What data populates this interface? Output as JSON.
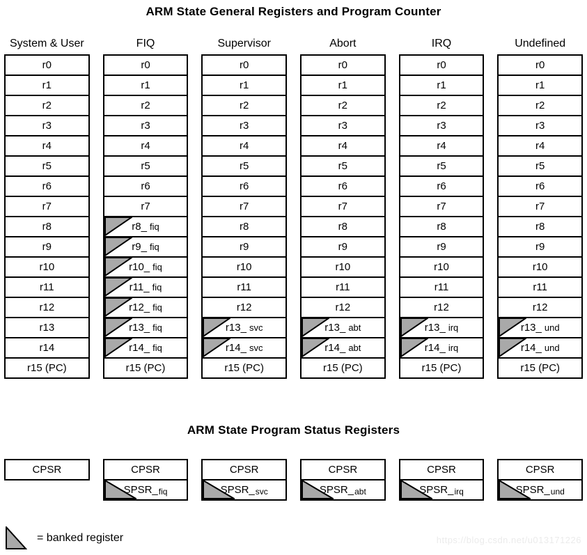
{
  "colors": {
    "banked_fill": "#a9a9a9",
    "line": "#000000",
    "watermark_text": "#ebebeb"
  },
  "icons": {
    "banked_marker": "corner-triangle-icon"
  },
  "general": {
    "title": "ARM State General Registers and Program Counter",
    "columns": [
      {
        "header": "System & User",
        "registers": [
          {
            "base": "r0"
          },
          {
            "base": "r1"
          },
          {
            "base": "r2"
          },
          {
            "base": "r3"
          },
          {
            "base": "r4"
          },
          {
            "base": "r5"
          },
          {
            "base": "r6"
          },
          {
            "base": "r7"
          },
          {
            "base": "r8"
          },
          {
            "base": "r9"
          },
          {
            "base": "r10"
          },
          {
            "base": "r11"
          },
          {
            "base": "r12"
          },
          {
            "base": "r13"
          },
          {
            "base": "r14"
          },
          {
            "base": "r15 (PC)"
          }
        ]
      },
      {
        "header": "FIQ",
        "registers": [
          {
            "base": "r0"
          },
          {
            "base": "r1"
          },
          {
            "base": "r2"
          },
          {
            "base": "r3"
          },
          {
            "base": "r4"
          },
          {
            "base": "r5"
          },
          {
            "base": "r6"
          },
          {
            "base": "r7"
          },
          {
            "base": "r8_",
            "suffix": "fiq",
            "banked": true
          },
          {
            "base": "r9_",
            "suffix": "fiq",
            "banked": true
          },
          {
            "base": "r10_",
            "suffix": "fiq",
            "banked": true
          },
          {
            "base": "r11_",
            "suffix": "fiq",
            "banked": true
          },
          {
            "base": "r12_",
            "suffix": "fiq",
            "banked": true
          },
          {
            "base": "r13_",
            "suffix": "fiq",
            "banked": true
          },
          {
            "base": "r14_",
            "suffix": "fiq",
            "banked": true
          },
          {
            "base": "r15 (PC)"
          }
        ]
      },
      {
        "header": "Supervisor",
        "registers": [
          {
            "base": "r0"
          },
          {
            "base": "r1"
          },
          {
            "base": "r2"
          },
          {
            "base": "r3"
          },
          {
            "base": "r4"
          },
          {
            "base": "r5"
          },
          {
            "base": "r6"
          },
          {
            "base": "r7"
          },
          {
            "base": "r8"
          },
          {
            "base": "r9"
          },
          {
            "base": "r10"
          },
          {
            "base": "r11"
          },
          {
            "base": "r12"
          },
          {
            "base": "r13_",
            "suffix": "svc",
            "banked": true
          },
          {
            "base": "r14_",
            "suffix": "svc",
            "banked": true
          },
          {
            "base": "r15 (PC)"
          }
        ]
      },
      {
        "header": "Abort",
        "registers": [
          {
            "base": "r0"
          },
          {
            "base": "r1"
          },
          {
            "base": "r2"
          },
          {
            "base": "r3"
          },
          {
            "base": "r4"
          },
          {
            "base": "r5"
          },
          {
            "base": "r6"
          },
          {
            "base": "r7"
          },
          {
            "base": "r8"
          },
          {
            "base": "r9"
          },
          {
            "base": "r10"
          },
          {
            "base": "r11"
          },
          {
            "base": "r12"
          },
          {
            "base": "r13_",
            "suffix": "abt",
            "banked": true
          },
          {
            "base": "r14_",
            "suffix": "abt",
            "banked": true
          },
          {
            "base": "r15 (PC)"
          }
        ]
      },
      {
        "header": "IRQ",
        "registers": [
          {
            "base": "r0"
          },
          {
            "base": "r1"
          },
          {
            "base": "r2"
          },
          {
            "base": "r3"
          },
          {
            "base": "r4"
          },
          {
            "base": "r5"
          },
          {
            "base": "r6"
          },
          {
            "base": "r7"
          },
          {
            "base": "r8"
          },
          {
            "base": "r9"
          },
          {
            "base": "r10"
          },
          {
            "base": "r11"
          },
          {
            "base": "r12"
          },
          {
            "base": "r13_",
            "suffix": "irq",
            "banked": true
          },
          {
            "base": "r14_",
            "suffix": "irq",
            "banked": true
          },
          {
            "base": "r15 (PC)"
          }
        ]
      },
      {
        "header": "Undefined",
        "registers": [
          {
            "base": "r0"
          },
          {
            "base": "r1"
          },
          {
            "base": "r2"
          },
          {
            "base": "r3"
          },
          {
            "base": "r4"
          },
          {
            "base": "r5"
          },
          {
            "base": "r6"
          },
          {
            "base": "r7"
          },
          {
            "base": "r8"
          },
          {
            "base": "r9"
          },
          {
            "base": "r10"
          },
          {
            "base": "r11"
          },
          {
            "base": "r12"
          },
          {
            "base": "r13_",
            "suffix": "und",
            "banked": true
          },
          {
            "base": "r14_",
            "suffix": "und",
            "banked": true
          },
          {
            "base": "r15 (PC)"
          }
        ]
      }
    ]
  },
  "status": {
    "title": "ARM State Program Status Registers",
    "columns": [
      {
        "cpsr": "CPSR"
      },
      {
        "cpsr": "CPSR",
        "spsr_base": "SPSR_",
        "spsr_suffix": "fiq",
        "banked": true
      },
      {
        "cpsr": "CPSR",
        "spsr_base": "SPSR_",
        "spsr_suffix": "svc",
        "banked": true
      },
      {
        "cpsr": "CPSR",
        "spsr_base": "SPSR_",
        "spsr_suffix": "abt",
        "banked": true
      },
      {
        "cpsr": "CPSR",
        "spsr_base": "SPSR_",
        "spsr_suffix": "irq",
        "banked": true
      },
      {
        "cpsr": "CPSR",
        "spsr_base": "SPSR_",
        "spsr_suffix": "und",
        "banked": true
      }
    ]
  },
  "legend": {
    "label": "= banked register"
  },
  "watermark": "https://blog.csdn.net/u013171226"
}
